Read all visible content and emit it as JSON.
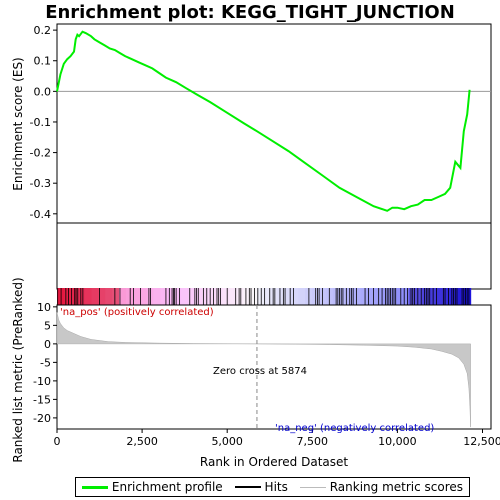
{
  "chart_data": {
    "type": "line",
    "title": "Enrichment plot: KEGG_TIGHT_JUNCTION",
    "top_panel": {
      "ylabel": "Enrichment score (ES)",
      "ylim": [
        -0.43,
        0.22
      ],
      "yticks": [
        0.2,
        0.1,
        0.0,
        -0.1,
        -0.2,
        -0.3,
        -0.4
      ],
      "ytick_labels": [
        "0.2",
        "0.1",
        "0.0",
        "-0.1",
        "-0.2",
        "-0.3",
        "-0.4"
      ],
      "series": [
        {
          "name": "Enrichment profile",
          "color": "#00ee00",
          "x": [
            0,
            100,
            200,
            300,
            400,
            500,
            550,
            600,
            650,
            750,
            850,
            1000,
            1100,
            1250,
            1400,
            1550,
            1700,
            1850,
            2000,
            2200,
            2400,
            2600,
            2800,
            3000,
            3200,
            3500,
            3800,
            4100,
            4500,
            5000,
            5500,
            5874,
            6300,
            6800,
            7300,
            7800,
            8300,
            8800,
            9300,
            9700,
            9850,
            10000,
            10200,
            10400,
            10600,
            10800,
            11000,
            11200,
            11400,
            11550,
            11700,
            11850,
            11950,
            12050,
            12120
          ],
          "y": [
            0.0,
            0.055,
            0.09,
            0.105,
            0.115,
            0.13,
            0.17,
            0.185,
            0.18,
            0.195,
            0.19,
            0.18,
            0.17,
            0.16,
            0.15,
            0.14,
            0.135,
            0.125,
            0.115,
            0.105,
            0.095,
            0.085,
            0.075,
            0.06,
            0.045,
            0.03,
            0.01,
            -0.01,
            -0.035,
            -0.07,
            -0.105,
            -0.13,
            -0.16,
            -0.195,
            -0.235,
            -0.275,
            -0.315,
            -0.345,
            -0.375,
            -0.39,
            -0.38,
            -0.38,
            -0.385,
            -0.375,
            -0.37,
            -0.355,
            -0.355,
            -0.345,
            -0.335,
            -0.315,
            -0.23,
            -0.25,
            -0.13,
            -0.075,
            0.005
          ]
        }
      ]
    },
    "hits_panel": {
      "legend": "Hits",
      "hit_ranks": [
        20,
        120,
        260,
        340,
        430,
        520,
        560,
        610,
        700,
        760,
        1250,
        1700,
        1850,
        2150,
        2250,
        2450,
        2700,
        2750,
        3200,
        3300,
        3380,
        3420,
        3450,
        3500,
        3600,
        3900,
        4050,
        4100,
        4150,
        4300,
        4400,
        4500,
        4600,
        4700,
        4750,
        4800,
        5000,
        5250,
        5350,
        5400,
        5550,
        5650,
        5700,
        5800,
        5900,
        6000,
        6100,
        6250,
        6350,
        6400,
        6550,
        6650,
        6700,
        6850,
        6950,
        7400,
        7600,
        7650,
        7700,
        7800,
        8000,
        8200,
        8250,
        8300,
        8350,
        8400,
        8500,
        8600,
        8650,
        8700,
        8800,
        9050,
        9150,
        9300,
        9450,
        9550,
        9650,
        9700,
        9750,
        9800,
        9850,
        9900,
        9950,
        10100,
        10200,
        10300,
        10400,
        10450,
        10500,
        10600,
        10700,
        10800,
        10850,
        10900,
        10950,
        11050,
        11150,
        11350,
        11400,
        11500,
        11600,
        11650,
        11700,
        11750,
        11900,
        11950,
        12000,
        12050,
        12100
      ],
      "color_scale": "red-to-blue by rank"
    },
    "bottom_panel": {
      "ylabel": "Ranked list metric (PreRanked)",
      "xlabel": "Rank in Ordered Dataset",
      "ylim": [
        -23,
        10.5
      ],
      "yticks": [
        10,
        5,
        0,
        -5,
        -10,
        -15,
        -20
      ],
      "ytick_labels": [
        "10",
        "5",
        "0",
        "-5",
        "-10",
        "-15",
        "-20"
      ],
      "xlim": [
        0,
        12750
      ],
      "xticks": [
        0,
        2500,
        5000,
        7500,
        10000,
        12500
      ],
      "xtick_labels": [
        "0",
        "2,500",
        "5,000",
        "7,500",
        "10,000",
        "12,500"
      ],
      "metric_x": [
        0,
        50,
        100,
        200,
        300,
        500,
        700,
        1000,
        1500,
        2000,
        3000,
        4000,
        5000,
        5874,
        7000,
        8000,
        9000,
        10000,
        10500,
        11000,
        11300,
        11600,
        11800,
        11950,
        12050,
        12100,
        12130,
        12150
      ],
      "metric_y": [
        8.5,
        6.5,
        5.5,
        4.3,
        3.6,
        2.8,
        2.0,
        1.2,
        0.6,
        0.4,
        0.2,
        0.1,
        0.05,
        0.0,
        -0.1,
        -0.2,
        -0.35,
        -0.6,
        -0.9,
        -1.4,
        -2.0,
        -2.8,
        -3.8,
        -5.5,
        -8.0,
        -12.0,
        -17.0,
        -22.5
      ],
      "annotations": [
        {
          "text": "'na_pos' (positively correlated)",
          "color": "#cc0000"
        },
        {
          "text": "Zero cross at 5874",
          "color": "#000000"
        },
        {
          "text": "'na_neg' (negatively correlated)",
          "color": "#0000cc"
        }
      ],
      "zero_cross": 5874
    },
    "legend": {
      "items": [
        {
          "label": "Enrichment profile",
          "color": "#00ee00"
        },
        {
          "label": "Hits",
          "color": "#000000"
        },
        {
          "label": "Ranking metric scores",
          "color": "#bbbbbb"
        }
      ]
    }
  }
}
